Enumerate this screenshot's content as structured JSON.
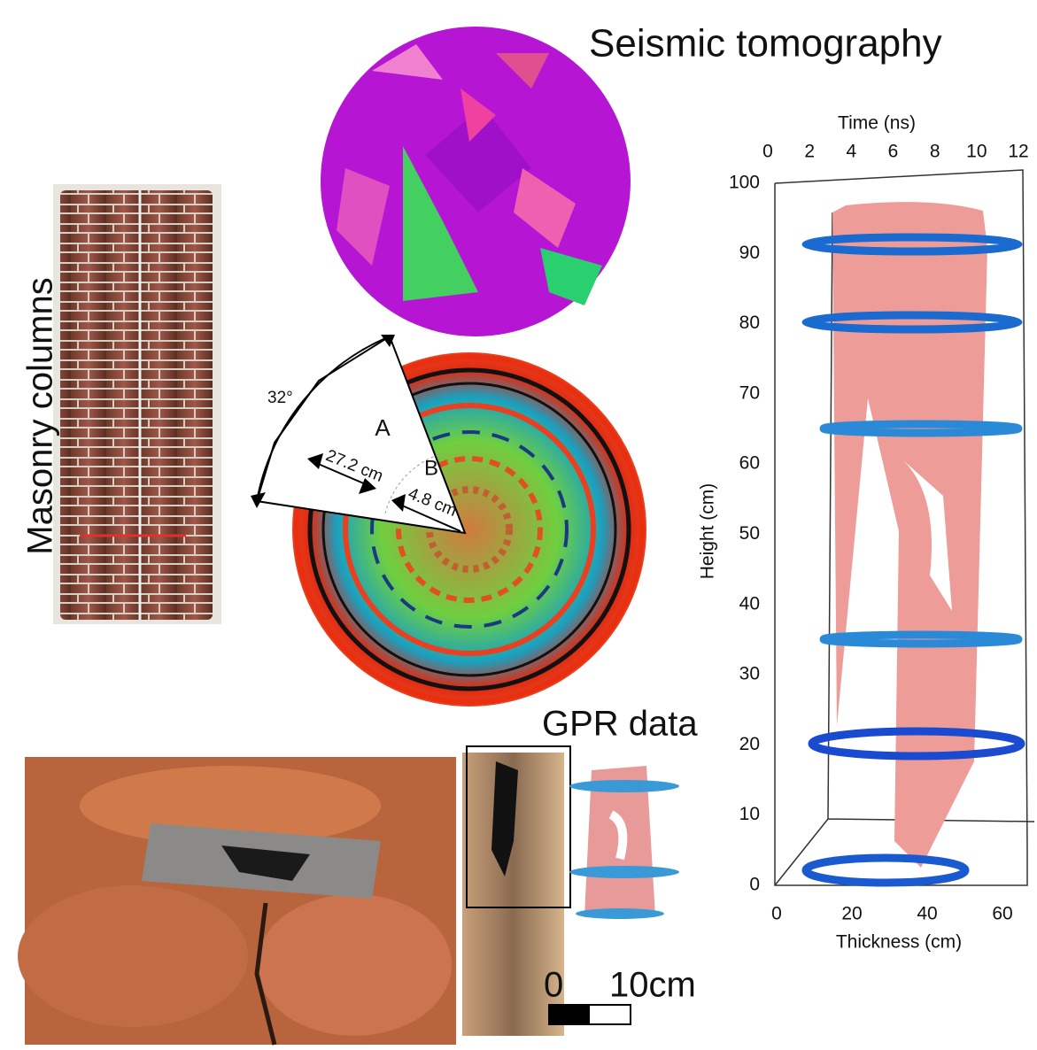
{
  "figure": {
    "seismic_title": "Seismic tomography",
    "columns_title": "Masonry columns",
    "gpr_title": "GPR data",
    "wedge": {
      "angle": "32°",
      "zone_a": "A",
      "zone_b": "B",
      "dist_a": "27.2 cm",
      "dist_b": "4.8 cm"
    },
    "scale_bar": {
      "start": "0",
      "end": "10cm"
    },
    "plot3d": {
      "time_axis": {
        "label": "Time (ns)",
        "ticks": [
          0,
          2,
          4,
          6,
          8,
          10,
          12
        ]
      },
      "height_axis": {
        "label": "Height (cm)",
        "ticks": [
          0,
          10,
          20,
          30,
          40,
          50,
          60,
          70,
          80,
          90,
          100
        ]
      },
      "thickness_axis": {
        "label": "Thickness (cm)",
        "ticks": [
          0,
          20,
          40,
          60
        ]
      }
    }
  }
}
